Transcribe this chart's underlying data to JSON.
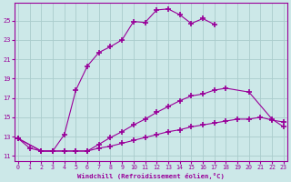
{
  "xlabel": "Windchill (Refroidissement éolien,°C)",
  "bg_color": "#cce8e8",
  "line_color": "#990099",
  "grid_color": "#aacccc",
  "xticks": [
    0,
    1,
    2,
    3,
    4,
    5,
    6,
    7,
    8,
    9,
    10,
    11,
    12,
    13,
    14,
    15,
    16,
    17,
    18,
    19,
    20,
    21,
    22,
    23
  ],
  "yticks": [
    11,
    13,
    15,
    17,
    19,
    21,
    23,
    25
  ],
  "xlim": [
    -0.3,
    23.3
  ],
  "ylim": [
    10.5,
    26.8
  ],
  "s1x": [
    0,
    1,
    2,
    3,
    4,
    5,
    6,
    7,
    8,
    9,
    10,
    11,
    12,
    13,
    14,
    15,
    16,
    17
  ],
  "s1y": [
    12.8,
    11.8,
    11.5,
    11.5,
    13.2,
    17.8,
    20.3,
    21.7,
    22.3,
    23.0,
    24.9,
    24.8,
    26.1,
    26.2,
    25.6,
    24.7,
    25.2,
    24.6
  ],
  "s2x": [
    0,
    2,
    3,
    4,
    5,
    6,
    7,
    8,
    9,
    10,
    11,
    12,
    13,
    14,
    15,
    16,
    17,
    18,
    20,
    22,
    23
  ],
  "s2y": [
    12.8,
    11.5,
    11.5,
    11.5,
    11.5,
    11.5,
    12.2,
    12.9,
    13.5,
    14.2,
    14.8,
    15.5,
    16.1,
    16.7,
    17.2,
    17.4,
    17.8,
    18.0,
    17.6,
    14.8,
    14.0
  ],
  "s3x": [
    0,
    2,
    3,
    4,
    5,
    6,
    7,
    8,
    9,
    10,
    11,
    12,
    13,
    14,
    15,
    16,
    17,
    18,
    19,
    20,
    21,
    22,
    23
  ],
  "s3y": [
    12.8,
    11.5,
    11.5,
    11.5,
    11.5,
    11.5,
    11.8,
    12.0,
    12.3,
    12.6,
    12.9,
    13.2,
    13.5,
    13.7,
    14.0,
    14.2,
    14.4,
    14.6,
    14.8,
    14.8,
    15.0,
    14.7,
    14.5
  ]
}
